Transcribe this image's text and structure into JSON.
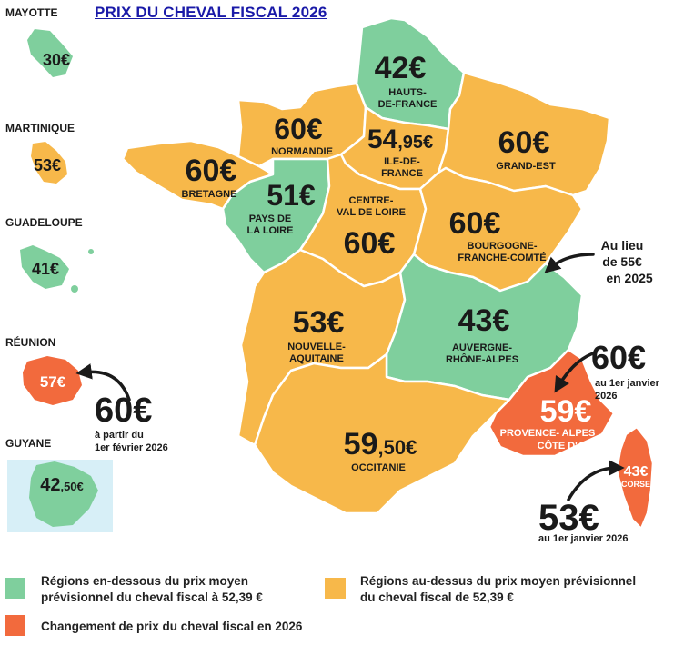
{
  "title": "PRIX DU CHEVAL FISCAL 2026",
  "colors": {
    "below": "#7fcf9d",
    "above": "#f7b84a",
    "changed": "#f26a3d",
    "text": "#1a1a1a",
    "title": "#1a1aa8",
    "stroke": "#ffffff"
  },
  "overseas": [
    {
      "name": "MAYOTTE",
      "price": "30€"
    },
    {
      "name": "MARTINIQUE",
      "price": "53€"
    },
    {
      "name": "GUADELOUPE",
      "price": "41€"
    },
    {
      "name": "RÉUNION",
      "price": "57€",
      "previous_big": "60€",
      "previous_line1": "à partir du",
      "previous_line2": "1er février 2026"
    },
    {
      "name": "GUYANE",
      "price_int": "42",
      "price_dec": ",50€"
    }
  ],
  "regions": {
    "hauts_de_france": {
      "line1": "HAUTS-",
      "line2": "DE-FRANCE",
      "price": "42€"
    },
    "normandie": {
      "name": "NORMANDIE",
      "price": "60€"
    },
    "ile_de_france": {
      "line1": "ILE-DE-",
      "line2": "FRANCE",
      "price_int": "54",
      "price_dec": ",95€"
    },
    "grand_est": {
      "name": "GRAND-EST",
      "price": "60€"
    },
    "bretagne": {
      "name": "BRETAGNE",
      "price": "60€"
    },
    "pays_de_la_loire": {
      "line1": "PAYS DE",
      "line2": "LA LOIRE",
      "price": "51€"
    },
    "centre_val_de_loire": {
      "line1": "CENTRE-",
      "line2": "VAL DE LOIRE",
      "price": "60€"
    },
    "bourgogne_franche_comte": {
      "line1": "BOURGOGNE-",
      "line2": "FRANCHE-COMTÉ",
      "price": "60€"
    },
    "nouvelle_aquitaine": {
      "line1": "NOUVELLE-",
      "line2": "AQUITAINE",
      "price": "53€"
    },
    "auvergne_rhone_alpes": {
      "line1": "AUVERGNE-",
      "line2": "RHÔNE-ALPES",
      "price": "43€"
    },
    "occitanie": {
      "name": "OCCITANIE",
      "price_int": "59",
      "price_dec": ",50€"
    },
    "paca": {
      "line1": "PROVENCE- ALPES",
      "line2": "CÔTE D'AZUR",
      "price": "59€",
      "previous_big": "60€",
      "previous_line1": "au 1er janvier",
      "previous_line2": "2026"
    },
    "corse": {
      "name": "CORSE",
      "price": "43€",
      "previous_big": "53€",
      "previous_line1": "au 1er janvier 2026"
    }
  },
  "bfc_note": [
    "Au lieu",
    "de 55€",
    "en 2025"
  ],
  "legend": {
    "below_line1": "Régions en-dessous du prix moyen",
    "below_line2": "prévisionnel du cheval fiscal à 52,39 €",
    "above_line1": "Régions au-dessus du prix moyen prévisionnel",
    "above_line2": "du cheval fiscal de 52,39 €",
    "changed": "Changement de prix du cheval fiscal en 2026"
  }
}
